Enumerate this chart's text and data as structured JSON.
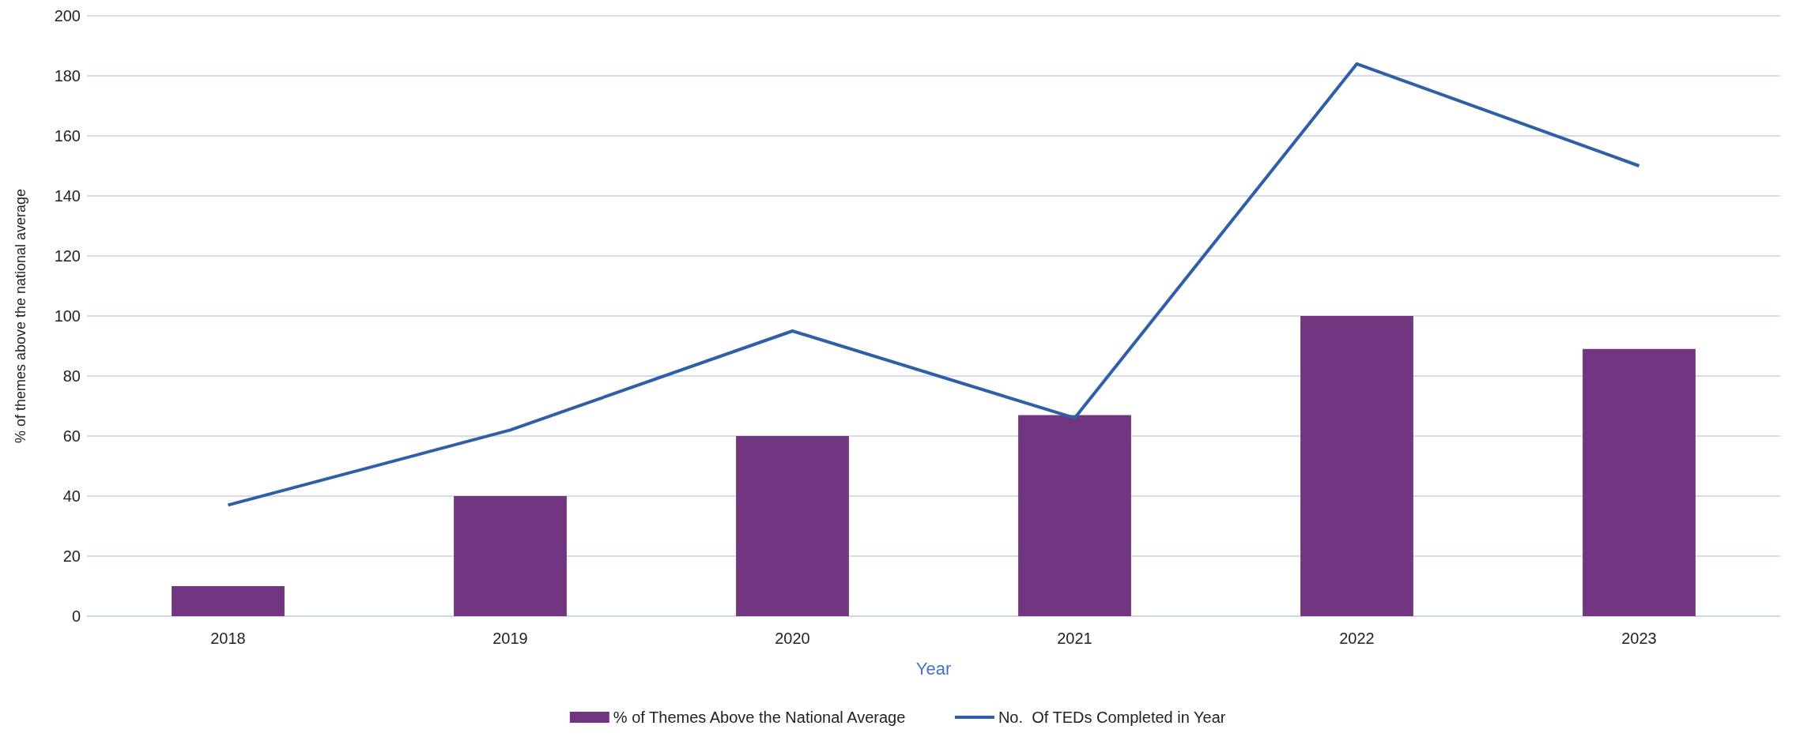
{
  "chart_data": {
    "type": "bar",
    "xlabel": "Year",
    "ylabel": "% of themes above the national average",
    "categories": [
      "2018",
      "2019",
      "2020",
      "2021",
      "2022",
      "2023"
    ],
    "series": [
      {
        "name": "% of Themes Above the National Average",
        "color": "#72357f",
        "values": [
          10,
          40,
          60,
          67,
          100,
          89
        ]
      },
      {
        "name": "No.  Of TEDs Completed in Year",
        "type": "line",
        "color": "#2f5fa7",
        "values": [
          37,
          62,
          95,
          66,
          184,
          150
        ]
      }
    ],
    "ylim": [
      0,
      200
    ],
    "yticks": [
      0,
      20,
      40,
      60,
      80,
      100,
      120,
      140,
      160,
      180,
      200
    ],
    "grid": "y",
    "legend": "bottom",
    "marker": "none"
  }
}
